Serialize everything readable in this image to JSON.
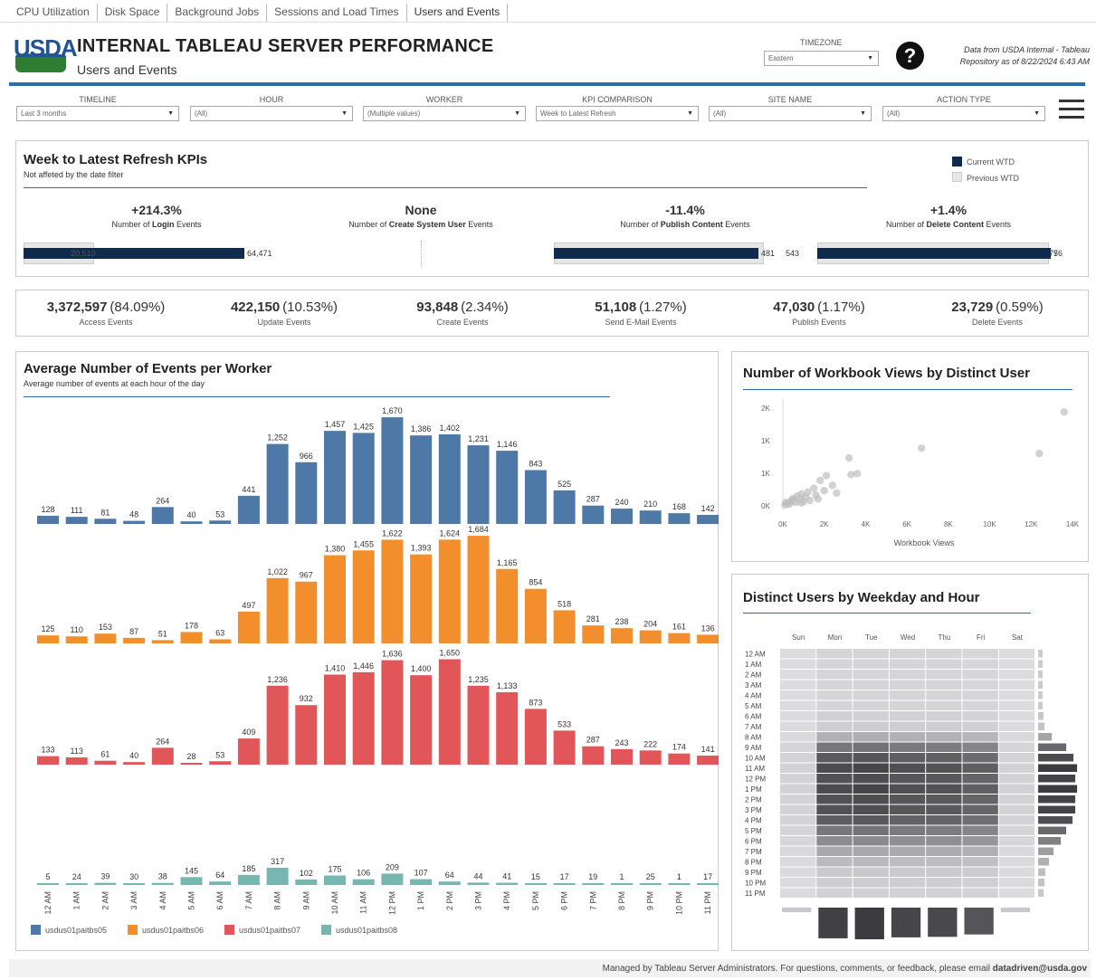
{
  "tabs": [
    "CPU Utilization",
    "Disk Space",
    "Background Jobs",
    "Sessions and Load Times",
    "Users and Events"
  ],
  "header": {
    "logo": "USDA",
    "title": "INTERNAL TABLEAU SERVER PERFORMANCE",
    "subtitle": "Users and Events",
    "timezone_label": "TIMEZONE",
    "timezone_value": "Eastern",
    "repo_line1": "Data from USDA Internal - Tableau",
    "repo_line2": "Repository as of 8/22/2024 6:43 AM"
  },
  "filters": [
    {
      "label": "TIMELINE",
      "value": "Last 3 months"
    },
    {
      "label": "HOUR",
      "value": "(All)"
    },
    {
      "label": "WORKER",
      "value": "(Multiple values)"
    },
    {
      "label": "KPI COMPARISON",
      "value": "Week to Latest Refresh"
    },
    {
      "label": "SITE NAME",
      "value": "(All)"
    },
    {
      "label": "ACTION TYPE",
      "value": "(All)"
    }
  ],
  "kpi_panel": {
    "title": "Week to Latest Refresh KPIs",
    "subtitle": "Not affeted by the date filter",
    "legend": [
      {
        "label": "Current WTD",
        "color": "#0f2a4a"
      },
      {
        "label": "Previous WTD",
        "color": "#e6e6e6"
      }
    ],
    "kpis": [
      {
        "change": "+214.3%",
        "label_pre": "Number of ",
        "label_bold": "Login",
        "label_post": " Events",
        "current": "64,471",
        "previous": "20,510"
      },
      {
        "change": "None",
        "label_pre": "Number of ",
        "label_bold": "Create System User",
        "label_post": " Events",
        "current": "",
        "previous": ""
      },
      {
        "change": "-11.4%",
        "label_pre": "Number of ",
        "label_bold": "Publish Content",
        "label_post": " Events",
        "current": "481",
        "previous": "543"
      },
      {
        "change": "+1.4%",
        "label_pre": "Number of ",
        "label_bold": "Delete Content",
        "label_post": " Events",
        "current": "76",
        "previous": "75"
      }
    ]
  },
  "stats": [
    {
      "value": "3,372,597",
      "pct": "(84.09%)",
      "label": "Access Events"
    },
    {
      "value": "422,150",
      "pct": "(10.53%)",
      "label": "Update Events"
    },
    {
      "value": "93,848",
      "pct": "(2.34%)",
      "label": "Create Events"
    },
    {
      "value": "51,108",
      "pct": "(1.27%)",
      "label": "Send E-Mail Events"
    },
    {
      "value": "47,030",
      "pct": "(1.17%)",
      "label": "Publish Events"
    },
    {
      "value": "23,729",
      "pct": "(0.59%)",
      "label": "Delete Events"
    }
  ],
  "panels": {
    "worker_title": "Average Number of Events per Worker",
    "worker_subtitle": "Average number of events at each hour of the day",
    "scatter_title": "Number of Workbook Views by Distinct User",
    "heat_title": "Distinct Users by Weekday and Hour"
  },
  "chart_data": [
    {
      "type": "bar",
      "title": "Average Number of Events per Worker",
      "categories": [
        "12 AM",
        "1 AM",
        "2 AM",
        "3 AM",
        "4 AM",
        "5 AM",
        "6 AM",
        "7 AM",
        "8 AM",
        "9 AM",
        "10 AM",
        "11 AM",
        "12 PM",
        "1 PM",
        "2 PM",
        "3 PM",
        "4 PM",
        "5 PM",
        "6 PM",
        "7 PM",
        "8 PM",
        "9 PM",
        "10 PM",
        "11 PM"
      ],
      "series": [
        {
          "name": "usdus01paitbs05",
          "color": "#4e79a7",
          "values": [
            128,
            111,
            81,
            48,
            264,
            40,
            53,
            441,
            1252,
            966,
            1457,
            1425,
            1670,
            1386,
            1402,
            1231,
            1146,
            843,
            525,
            287,
            240,
            210,
            168,
            142
          ]
        },
        {
          "name": "usdus01paitbs06",
          "color": "#f28e2b",
          "values": [
            125,
            110,
            153,
            87,
            51,
            178,
            63,
            497,
            1022,
            967,
            1380,
            1455,
            1622,
            1393,
            1624,
            1684,
            1165,
            854,
            518,
            281,
            238,
            204,
            161,
            136
          ]
        },
        {
          "name": "usdus01paitbs07",
          "color": "#e15759",
          "values": [
            133,
            113,
            61,
            40,
            264,
            28,
            53,
            409,
            1236,
            932,
            1410,
            1446,
            1636,
            1400,
            1650,
            1235,
            1133,
            873,
            533,
            287,
            243,
            222,
            174,
            141
          ]
        },
        {
          "name": "usdus01paitbs08",
          "color": "#76b7b2",
          "values": [
            5,
            24,
            39,
            30,
            38,
            145,
            64,
            185,
            317,
            102,
            175,
            106,
            209,
            107,
            64,
            44,
            41,
            15,
            17,
            19,
            1,
            25,
            1,
            17
          ]
        }
      ]
    },
    {
      "type": "scatter",
      "title": "Number of Workbook Views by Distinct User",
      "xlabel": "Workbook Views",
      "xticks": [
        "0K",
        "2K",
        "4K",
        "6K",
        "8K",
        "10K",
        "12K",
        "14K"
      ],
      "yticks": [
        "0K",
        "1K",
        "1K",
        "2K"
      ],
      "xlim": [
        0,
        14000
      ],
      "ylim": [
        0,
        2000
      ],
      "points": [
        [
          13600,
          1920
        ],
        [
          6700,
          1180
        ],
        [
          12400,
          1070
        ],
        [
          3200,
          980
        ],
        [
          3600,
          660
        ],
        [
          3300,
          640
        ],
        [
          2100,
          620
        ],
        [
          1800,
          520
        ],
        [
          2400,
          420
        ],
        [
          1500,
          360
        ],
        [
          2000,
          310
        ],
        [
          1200,
          280
        ],
        [
          900,
          240
        ],
        [
          1600,
          220
        ],
        [
          700,
          200
        ],
        [
          1100,
          180
        ],
        [
          500,
          150
        ],
        [
          800,
          130
        ],
        [
          1300,
          110
        ],
        [
          400,
          90
        ],
        [
          600,
          70
        ],
        [
          200,
          50
        ],
        [
          300,
          30
        ],
        [
          100,
          20
        ],
        [
          900,
          60
        ],
        [
          1700,
          140
        ],
        [
          2600,
          260
        ],
        [
          1000,
          90
        ],
        [
          450,
          120
        ],
        [
          150,
          70
        ]
      ]
    },
    {
      "type": "heatmap",
      "title": "Distinct Users by Weekday and Hour",
      "columns": [
        "Sun",
        "Mon",
        "Tue",
        "Wed",
        "Thu",
        "Fri",
        "Sat"
      ],
      "rows": [
        "12 AM",
        "1 AM",
        "2 AM",
        "3 AM",
        "4 AM",
        "5 AM",
        "6 AM",
        "7 AM",
        "8 AM",
        "9 AM",
        "10 AM",
        "11 AM",
        "12 PM",
        "1 PM",
        "2 PM",
        "3 PM",
        "4 PM",
        "5 PM",
        "6 PM",
        "7 PM",
        "8 PM",
        "9 PM",
        "10 PM",
        "11 PM"
      ],
      "hour_totals": [
        2,
        2,
        2,
        2,
        2,
        2,
        3,
        4,
        12,
        28,
        36,
        40,
        38,
        40,
        38,
        38,
        35,
        28,
        22,
        14,
        9,
        5,
        4,
        3
      ],
      "weekday_totals": [
        4,
        58,
        60,
        56,
        55,
        50,
        4
      ]
    }
  ],
  "footer": {
    "pre": "Managed by Tableau Server Administrators. For questions, comments, or feedback, please email ",
    "email": "datadriven@usda.gov"
  }
}
